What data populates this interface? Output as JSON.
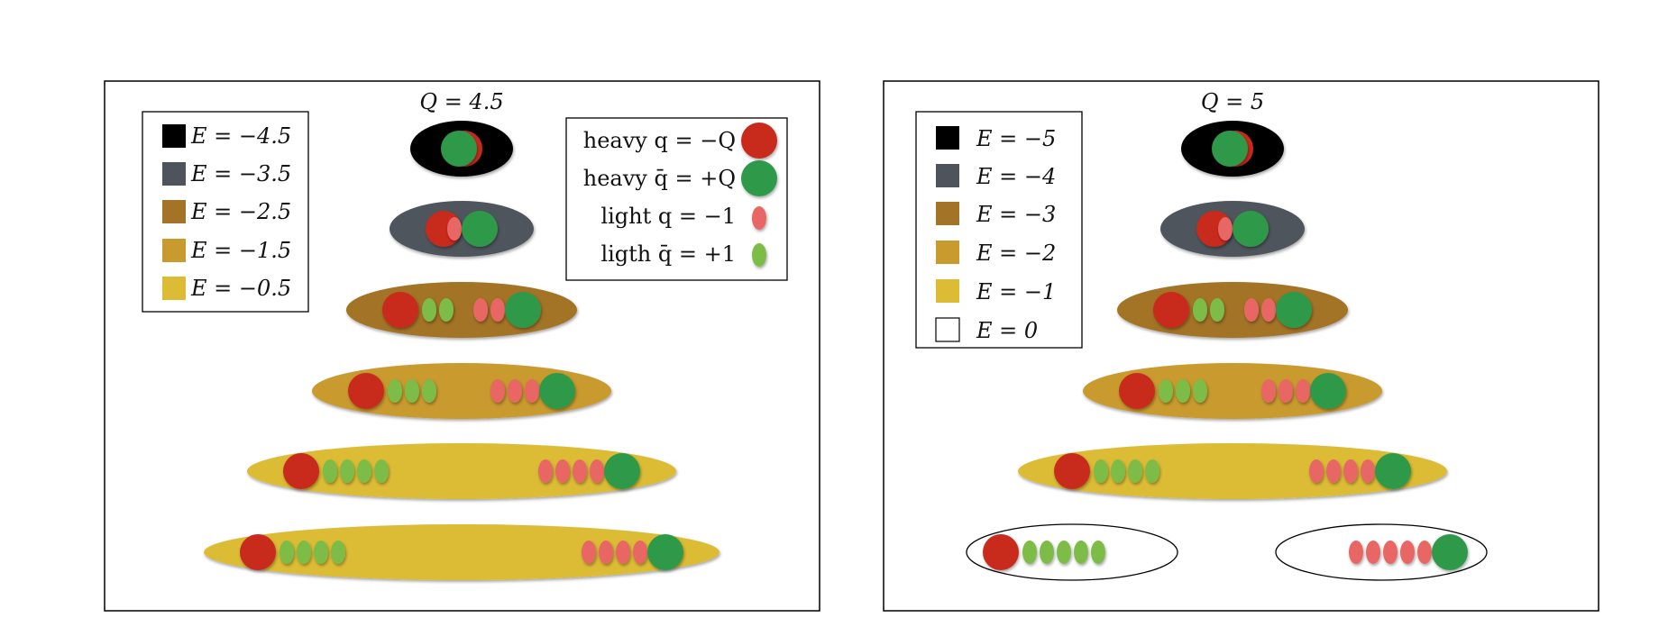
{
  "colors": {
    "heavy_q": "#c8291f",
    "heavy_qbar": "#2e9a48",
    "light_q": "#e86664",
    "light_qbar": "#7cbc47"
  },
  "panels": [
    {
      "title": "Q = 4.5",
      "legend": [
        {
          "label": "E = −4.5",
          "color": "#000000"
        },
        {
          "label": "E = −3.5",
          "color": "#4f545c"
        },
        {
          "label": "E = −2.5",
          "color": "#a37328"
        },
        {
          "label": "E = −1.5",
          "color": "#c99a2e"
        },
        {
          "label": "E = −0.5",
          "color": "#dcbc35"
        }
      ],
      "particle_legend": [
        {
          "label": "heavy q = −Q",
          "type": "heavy_q"
        },
        {
          "label": "heavy q̄ = +Q",
          "type": "heavy_qbar"
        },
        {
          "label": "light q = −1",
          "type": "light_q"
        },
        {
          "label": "ligth q̄ = +1",
          "type": "light_qbar"
        }
      ],
      "states": [
        {
          "energy": "E = −4.5",
          "light_pairs": 0,
          "color": "#000000",
          "split": false
        },
        {
          "energy": "E = −3.5",
          "light_pairs": 1,
          "color": "#4f545c",
          "split": false
        },
        {
          "energy": "E = −2.5",
          "light_pairs": 2,
          "color": "#a37328",
          "split": false
        },
        {
          "energy": "E = −1.5",
          "light_pairs": 3,
          "color": "#c99a2e",
          "split": false
        },
        {
          "energy": "E = −0.5",
          "light_pairs": 4,
          "color": "#dcbc35",
          "split": false
        },
        {
          "energy": "E = −0.5",
          "light_pairs": 4,
          "color": "#dcbc35",
          "split": false
        }
      ]
    },
    {
      "title": "Q = 5",
      "legend": [
        {
          "label": "E = −5",
          "color": "#000000"
        },
        {
          "label": "E = −4",
          "color": "#4f545c"
        },
        {
          "label": "E = −3",
          "color": "#a37328"
        },
        {
          "label": "E = −2",
          "color": "#c99a2e"
        },
        {
          "label": "E = −1",
          "color": "#dcbc35"
        },
        {
          "label": "E = 0",
          "color": "#ffffff"
        }
      ],
      "states": [
        {
          "energy": "E = −5",
          "light_pairs": 0,
          "color": "#000000",
          "split": false
        },
        {
          "energy": "E = −4",
          "light_pairs": 1,
          "color": "#4f545c",
          "split": false
        },
        {
          "energy": "E = −3",
          "light_pairs": 2,
          "color": "#a37328",
          "split": false
        },
        {
          "energy": "E = −2",
          "light_pairs": 3,
          "color": "#c99a2e",
          "split": false
        },
        {
          "energy": "E = −1",
          "light_pairs": 4,
          "color": "#dcbc35",
          "split": false
        },
        {
          "energy": "E = 0",
          "light_pairs": 5,
          "color": "#ffffff",
          "split": true
        }
      ]
    }
  ]
}
